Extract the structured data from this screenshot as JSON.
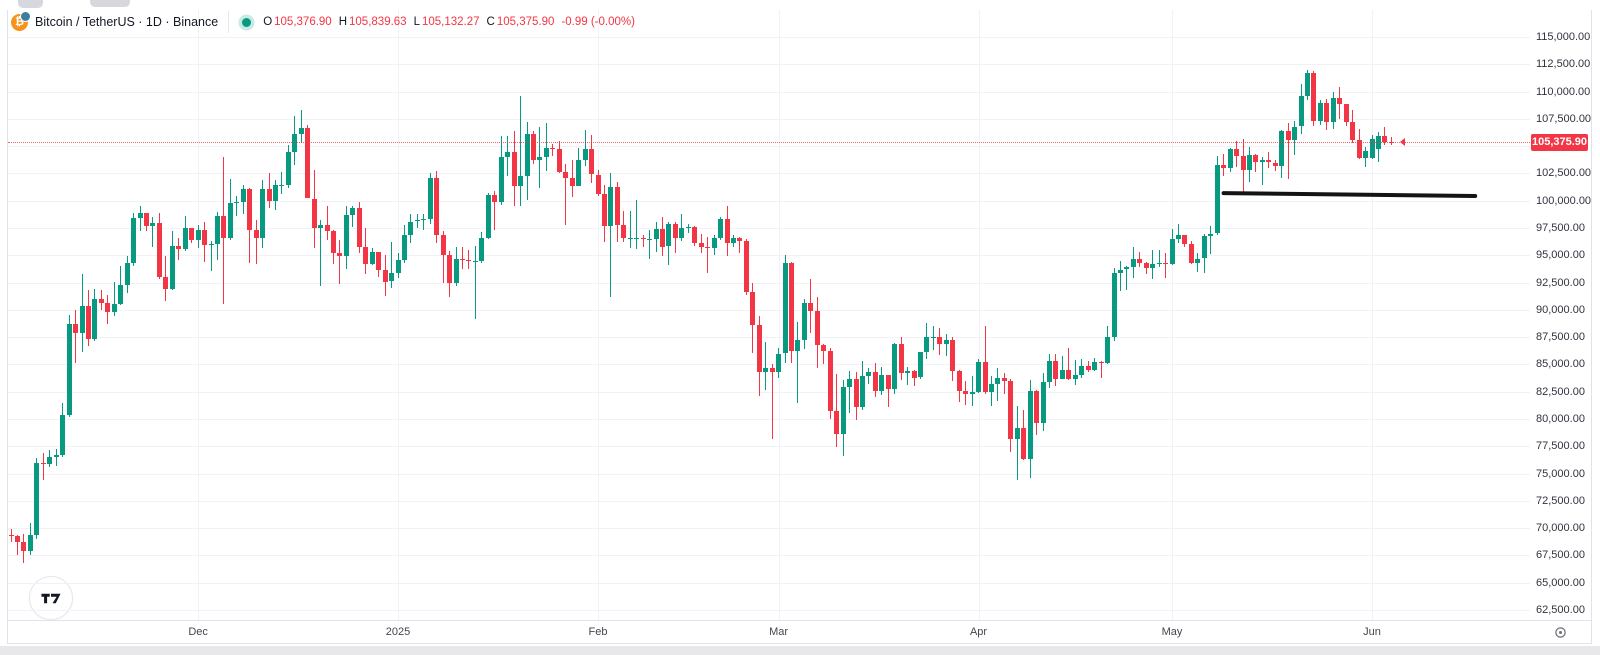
{
  "header": {
    "title": "Bitcoin / TetherUS · 1D · Binance",
    "symbol_icon_glyph": "₿",
    "ohlc": [
      {
        "label": "O",
        "value": "105,376.90"
      },
      {
        "label": "H",
        "value": "105,839.63"
      },
      {
        "label": "L",
        "value": "105,132.27"
      },
      {
        "label": "C",
        "value": "105,375.90"
      }
    ],
    "change": "-0.99 (-0.00%)"
  },
  "price_line": {
    "value": 105375.9,
    "label": "105,375.90",
    "color": "#f23645"
  },
  "price_scale": {
    "ticks": [
      "115,000.00",
      "112,500.00",
      "110,000.00",
      "107,500.00",
      "102,500.00",
      "100,000.00",
      "97,500.00",
      "95,000.00",
      "92,500.00",
      "90,000.00",
      "87,500.00",
      "85,000.00",
      "82,500.00",
      "80,000.00",
      "77,500.00",
      "75,000.00",
      "72,500.00",
      "70,000.00",
      "67,500.00",
      "65,000.00",
      "62,500.00"
    ]
  },
  "time_scale": {
    "labels": [
      {
        "text": "Dec",
        "date": "2024-12-01"
      },
      {
        "text": "2025",
        "date": "2025-01-01"
      },
      {
        "text": "Feb",
        "date": "2025-02-01"
      },
      {
        "text": "Mar",
        "date": "2025-03-01"
      },
      {
        "text": "Apr",
        "date": "2025-04-01"
      },
      {
        "text": "May",
        "date": "2025-05-01"
      },
      {
        "text": "Jun",
        "date": "2025-06-01"
      }
    ]
  },
  "trendline": {
    "date1": "2025-05-09",
    "price1": 100700,
    "date2": "2025-06-17",
    "price2": 100430,
    "color": "#141414",
    "width": 4
  },
  "chart_data": {
    "type": "candlestick",
    "title": "Bitcoin / TetherUS",
    "interval": "1D",
    "exchange": "Binance",
    "unit": "USD, candle values in thousands",
    "up_color": "#089981",
    "down_color": "#f23645",
    "grid": true,
    "ylim": [
      62500,
      115000
    ],
    "grid_step": 2500,
    "start_date": "2024-11-02",
    "candles": [
      [
        69.4,
        69.9,
        68.7,
        69.3
      ],
      [
        69.3,
        69.4,
        67.5,
        68.7
      ],
      [
        68.7,
        69.5,
        66.8,
        67.9
      ],
      [
        67.9,
        70.5,
        67.5,
        69.4
      ],
      [
        69.4,
        76.4,
        69.0,
        76.0
      ],
      [
        76.0,
        76.9,
        74.4,
        75.9
      ],
      [
        75.9,
        77.2,
        75.6,
        76.5
      ],
      [
        76.5,
        77.3,
        75.7,
        76.7
      ],
      [
        76.7,
        81.5,
        76.5,
        80.4
      ],
      [
        80.4,
        89.5,
        80.2,
        88.7
      ],
      [
        88.7,
        90.0,
        85.1,
        87.9
      ],
      [
        87.9,
        93.3,
        86.1,
        90.4
      ],
      [
        90.4,
        91.8,
        86.7,
        87.3
      ],
      [
        87.3,
        91.9,
        87.1,
        91.0
      ],
      [
        91.0,
        91.8,
        90.0,
        90.6
      ],
      [
        90.6,
        91.4,
        88.7,
        89.8
      ],
      [
        89.8,
        92.6,
        89.4,
        90.5
      ],
      [
        90.5,
        94.0,
        90.4,
        92.3
      ],
      [
        92.3,
        94.9,
        91.5,
        94.3
      ],
      [
        94.3,
        98.9,
        94.0,
        98.4
      ],
      [
        98.4,
        99.5,
        97.2,
        98.9
      ],
      [
        98.9,
        98.9,
        97.2,
        97.7
      ],
      [
        97.7,
        98.5,
        95.8,
        98.0
      ],
      [
        98.0,
        98.9,
        92.8,
        93.0
      ],
      [
        93.0,
        94.9,
        90.8,
        91.9
      ],
      [
        91.9,
        97.2,
        91.8,
        95.9
      ],
      [
        95.9,
        96.6,
        94.6,
        95.6
      ],
      [
        95.6,
        98.6,
        95.4,
        97.5
      ],
      [
        97.5,
        97.5,
        96.1,
        96.4
      ],
      [
        96.4,
        97.8,
        95.7,
        97.3
      ],
      [
        97.3,
        98.1,
        94.4,
        95.9
      ],
      [
        95.9,
        96.3,
        93.6,
        96.0
      ],
      [
        96.0,
        99.0,
        94.6,
        98.6
      ],
      [
        98.6,
        104.0,
        90.5,
        96.6
      ],
      [
        96.6,
        102.0,
        96.4,
        99.8
      ],
      [
        99.8,
        100.4,
        98.6,
        99.9
      ],
      [
        99.9,
        101.4,
        98.8,
        101.1
      ],
      [
        101.1,
        101.2,
        94.3,
        97.3
      ],
      [
        97.3,
        98.2,
        94.2,
        96.6
      ],
      [
        96.6,
        101.9,
        95.7,
        101.1
      ],
      [
        101.1,
        102.5,
        99.3,
        100.0
      ],
      [
        100.0,
        101.9,
        99.2,
        101.4
      ],
      [
        101.4,
        102.6,
        100.6,
        101.4
      ],
      [
        101.4,
        105.1,
        101.2,
        104.5
      ],
      [
        104.5,
        107.8,
        103.3,
        106.1
      ],
      [
        106.1,
        108.3,
        105.3,
        106.7
      ],
      [
        106.7,
        106.9,
        100.2,
        100.2
      ],
      [
        100.2,
        102.8,
        95.7,
        97.5
      ],
      [
        97.5,
        98.2,
        92.2,
        97.8
      ],
      [
        97.8,
        99.5,
        96.4,
        97.2
      ],
      [
        97.2,
        97.3,
        94.2,
        95.2
      ],
      [
        95.2,
        96.4,
        92.4,
        94.9
      ],
      [
        94.9,
        99.5,
        93.7,
        98.7
      ],
      [
        98.7,
        99.5,
        97.6,
        99.3
      ],
      [
        99.3,
        99.9,
        95.2,
        95.8
      ],
      [
        95.8,
        97.5,
        93.3,
        94.2
      ],
      [
        94.2,
        95.7,
        94.1,
        95.3
      ],
      [
        95.3,
        95.3,
        93.0,
        93.7
      ],
      [
        93.7,
        95.0,
        91.3,
        92.6
      ],
      [
        92.6,
        96.2,
        92.0,
        93.4
      ],
      [
        93.4,
        95.2,
        92.9,
        94.6
      ],
      [
        94.6,
        97.8,
        94.3,
        96.9
      ],
      [
        96.9,
        98.8,
        96.1,
        98.1
      ],
      [
        98.1,
        98.8,
        97.5,
        98.2
      ],
      [
        98.2,
        98.8,
        97.3,
        98.3
      ],
      [
        98.3,
        102.5,
        97.9,
        102.1
      ],
      [
        102.1,
        102.7,
        96.1,
        96.9
      ],
      [
        96.9,
        97.2,
        92.5,
        95.0
      ],
      [
        95.0,
        95.4,
        91.2,
        92.5
      ],
      [
        92.5,
        95.8,
        92.2,
        94.7
      ],
      [
        94.7,
        95.8,
        93.7,
        94.6
      ],
      [
        94.6,
        95.5,
        93.7,
        94.5
      ],
      [
        94.5,
        95.9,
        89.2,
        94.5
      ],
      [
        94.5,
        97.1,
        94.3,
        96.6
      ],
      [
        96.6,
        100.7,
        96.5,
        100.5
      ],
      [
        100.5,
        100.9,
        97.3,
        99.9
      ],
      [
        99.9,
        105.9,
        99.6,
        104.0
      ],
      [
        104.0,
        105.9,
        102.3,
        104.5
      ],
      [
        104.5,
        106.4,
        99.5,
        101.3
      ],
      [
        101.3,
        109.6,
        99.5,
        102.3
      ],
      [
        102.3,
        107.2,
        100.1,
        106.1
      ],
      [
        106.1,
        106.4,
        103.4,
        103.7
      ],
      [
        103.7,
        106.8,
        101.2,
        104.0
      ],
      [
        104.0,
        107.1,
        102.7,
        104.8
      ],
      [
        104.8,
        105.2,
        104.1,
        104.7
      ],
      [
        104.7,
        105.5,
        102.5,
        102.6
      ],
      [
        102.6,
        103.4,
        97.8,
        102.1
      ],
      [
        102.1,
        103.7,
        100.3,
        101.3
      ],
      [
        101.3,
        104.8,
        101.3,
        103.7
      ],
      [
        103.7,
        106.5,
        103.2,
        104.7
      ],
      [
        104.7,
        106.0,
        101.6,
        102.4
      ],
      [
        102.4,
        102.8,
        100.4,
        100.6
      ],
      [
        100.6,
        101.4,
        96.2,
        97.7
      ],
      [
        97.7,
        102.5,
        91.2,
        101.3
      ],
      [
        101.3,
        101.7,
        96.2,
        97.8
      ],
      [
        97.8,
        99.1,
        96.2,
        96.6
      ],
      [
        96.6,
        99.1,
        95.7,
        96.6
      ],
      [
        96.6,
        100.1,
        95.6,
        96.6
      ],
      [
        96.6,
        96.9,
        95.8,
        96.5
      ],
      [
        96.5,
        97.3,
        94.7,
        96.5
      ],
      [
        96.5,
        98.1,
        95.3,
        97.4
      ],
      [
        97.4,
        98.5,
        94.9,
        95.8
      ],
      [
        95.8,
        98.1,
        94.1,
        97.9
      ],
      [
        97.9,
        98.1,
        95.2,
        96.6
      ],
      [
        96.6,
        98.8,
        96.3,
        97.5
      ],
      [
        97.5,
        97.9,
        97.0,
        97.6
      ],
      [
        97.6,
        97.7,
        95.8,
        96.1
      ],
      [
        96.1,
        97.0,
        95.2,
        95.8
      ],
      [
        95.8,
        96.7,
        93.4,
        95.7
      ],
      [
        95.7,
        96.9,
        95.0,
        96.6
      ],
      [
        96.6,
        98.5,
        96.4,
        98.3
      ],
      [
        98.3,
        99.5,
        94.9,
        96.1
      ],
      [
        96.1,
        96.9,
        95.8,
        96.6
      ],
      [
        96.6,
        96.7,
        95.2,
        96.3
      ],
      [
        96.3,
        96.5,
        91.4,
        91.6
      ],
      [
        91.6,
        92.5,
        86.0,
        88.6
      ],
      [
        88.6,
        89.4,
        82.1,
        84.3
      ],
      [
        84.3,
        87.1,
        82.7,
        84.7
      ],
      [
        84.7,
        85.0,
        78.2,
        84.3
      ],
      [
        84.3,
        86.5,
        83.8,
        86.0
      ],
      [
        86.0,
        95.0,
        85.1,
        94.3
      ],
      [
        94.3,
        94.4,
        85.1,
        86.2
      ],
      [
        86.2,
        88.9,
        81.5,
        87.2
      ],
      [
        87.2,
        91.0,
        86.4,
        90.6
      ],
      [
        90.6,
        92.8,
        87.9,
        89.9
      ],
      [
        89.9,
        91.2,
        84.7,
        86.8
      ],
      [
        86.8,
        86.9,
        85.0,
        86.2
      ],
      [
        86.2,
        86.5,
        80.0,
        80.7
      ],
      [
        80.7,
        84.1,
        77.4,
        78.6
      ],
      [
        78.6,
        83.6,
        76.6,
        82.9
      ],
      [
        82.9,
        84.4,
        80.6,
        83.7
      ],
      [
        83.7,
        84.3,
        79.9,
        81.1
      ],
      [
        81.1,
        85.3,
        80.8,
        83.9
      ],
      [
        83.9,
        84.7,
        83.2,
        84.3
      ],
      [
        84.3,
        85.1,
        82.0,
        82.6
      ],
      [
        82.6,
        84.8,
        82.2,
        84.0
      ],
      [
        84.0,
        84.0,
        81.1,
        82.7
      ],
      [
        82.7,
        87.0,
        82.3,
        86.9
      ],
      [
        86.9,
        87.5,
        83.6,
        84.2
      ],
      [
        84.2,
        84.8,
        83.1,
        84.4
      ],
      [
        84.4,
        84.5,
        83.0,
        83.8
      ],
      [
        83.8,
        86.1,
        83.7,
        86.1
      ],
      [
        86.1,
        88.8,
        85.5,
        87.5
      ],
      [
        87.5,
        88.5,
        86.3,
        87.5
      ],
      [
        87.5,
        88.3,
        85.9,
        86.9
      ],
      [
        86.9,
        87.8,
        85.8,
        87.2
      ],
      [
        87.2,
        87.5,
        83.5,
        84.4
      ],
      [
        84.4,
        84.5,
        81.6,
        82.6
      ],
      [
        82.6,
        83.5,
        81.3,
        82.3
      ],
      [
        82.3,
        83.9,
        81.2,
        82.5
      ],
      [
        82.5,
        85.5,
        82.4,
        85.2
      ],
      [
        85.2,
        88.5,
        82.3,
        82.5
      ],
      [
        82.5,
        83.9,
        81.2,
        83.2
      ],
      [
        83.2,
        84.7,
        81.6,
        83.8
      ],
      [
        83.8,
        84.2,
        82.3,
        83.5
      ],
      [
        83.5,
        83.7,
        77.0,
        78.2
      ],
      [
        78.2,
        81.2,
        74.4,
        79.2
      ],
      [
        79.2,
        80.8,
        76.2,
        76.3
      ],
      [
        76.3,
        83.6,
        74.6,
        82.6
      ],
      [
        82.6,
        82.7,
        78.5,
        79.6
      ],
      [
        79.6,
        84.2,
        78.9,
        83.4
      ],
      [
        83.4,
        86.0,
        82.8,
        85.3
      ],
      [
        85.3,
        86.0,
        83.0,
        83.7
      ],
      [
        83.7,
        85.8,
        83.7,
        84.5
      ],
      [
        84.5,
        86.5,
        83.6,
        83.7
      ],
      [
        83.7,
        85.4,
        83.1,
        84.0
      ],
      [
        84.0,
        85.5,
        83.8,
        84.9
      ],
      [
        84.9,
        85.3,
        84.3,
        84.5
      ],
      [
        84.5,
        85.6,
        84.4,
        85.2
      ],
      [
        85.2,
        85.3,
        83.8,
        85.1
      ],
      [
        85.1,
        88.5,
        85.0,
        87.5
      ],
      [
        87.5,
        93.8,
        87.1,
        93.4
      ],
      [
        93.4,
        94.5,
        91.7,
        93.7
      ],
      [
        93.7,
        94.0,
        91.8,
        93.9
      ],
      [
        93.9,
        95.8,
        92.9,
        94.7
      ],
      [
        94.7,
        95.3,
        93.9,
        94.3
      ],
      [
        94.3,
        94.4,
        93.3,
        93.8
      ],
      [
        93.8,
        95.5,
        92.8,
        94.2
      ],
      [
        94.2,
        95.5,
        93.9,
        94.3
      ],
      [
        94.3,
        95.2,
        92.9,
        94.2
      ],
      [
        94.2,
        97.4,
        94.1,
        96.5
      ],
      [
        96.5,
        97.9,
        96.1,
        96.9
      ],
      [
        96.9,
        96.9,
        95.8,
        96.0
      ],
      [
        96.0,
        96.3,
        94.2,
        94.3
      ],
      [
        94.3,
        95.2,
        93.5,
        94.7
      ],
      [
        94.7,
        97.0,
        93.4,
        96.8
      ],
      [
        96.8,
        97.7,
        95.1,
        97.0
      ],
      [
        97.0,
        104.1,
        96.9,
        103.3
      ],
      [
        103.3,
        104.3,
        102.3,
        103.0
      ],
      [
        103.0,
        104.8,
        102.6,
        104.7
      ],
      [
        104.7,
        105.5,
        103.1,
        104.1
      ],
      [
        104.1,
        105.7,
        100.7,
        102.8
      ],
      [
        102.8,
        104.9,
        101.7,
        104.2
      ],
      [
        104.2,
        104.3,
        102.6,
        103.5
      ],
      [
        103.5,
        104.0,
        101.4,
        103.7
      ],
      [
        103.7,
        104.5,
        103.0,
        103.5
      ],
      [
        103.5,
        103.7,
        102.7,
        103.2
      ],
      [
        103.2,
        106.5,
        102.1,
        106.4
      ],
      [
        106.4,
        107.1,
        102.0,
        105.6
      ],
      [
        105.6,
        107.3,
        104.2,
        106.8
      ],
      [
        106.8,
        110.7,
        106.1,
        109.6
      ],
      [
        109.6,
        112.0,
        109.2,
        111.7
      ],
      [
        111.7,
        111.9,
        106.8,
        107.3
      ],
      [
        107.3,
        109.2,
        106.9,
        109.0
      ],
      [
        109.0,
        109.3,
        106.5,
        107.2
      ],
      [
        107.2,
        110.0,
        106.6,
        109.4
      ],
      [
        109.4,
        110.4,
        107.5,
        108.9
      ],
      [
        108.9,
        108.9,
        106.8,
        107.2
      ],
      [
        107.2,
        108.3,
        105.3,
        105.6
      ],
      [
        105.6,
        106.6,
        103.8,
        103.9
      ],
      [
        103.9,
        104.9,
        103.1,
        104.6
      ],
      [
        103.9,
        106.0,
        103.8,
        105.7
      ],
      [
        104.7,
        106.3,
        103.6,
        105.9
      ],
      [
        105.9,
        106.8,
        105.1,
        105.4
      ],
      [
        105.377,
        105.84,
        105.132,
        105.376
      ]
    ]
  }
}
